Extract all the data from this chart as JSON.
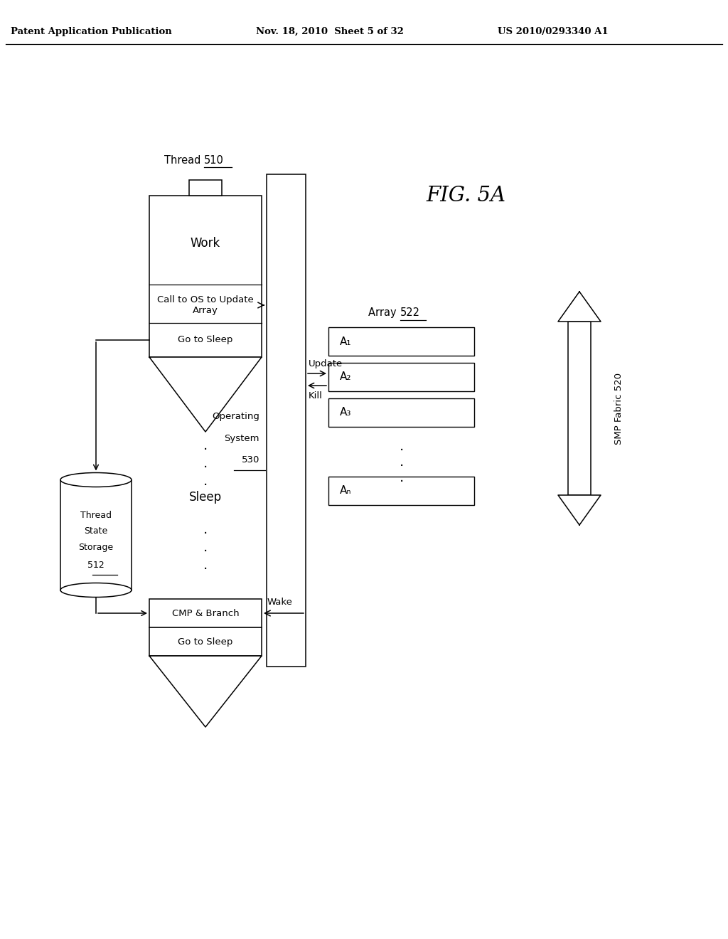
{
  "bg": "#ffffff",
  "hdr_l": "Patent Application Publication",
  "hdr_m": "Nov. 18, 2010  Sheet 5 of 32",
  "hdr_r": "US 2010/0293340 A1",
  "fig_label": "FIG. 5A",
  "work": "Work",
  "call_os": "Call to OS to Update\nArray",
  "go_sleep": "Go to Sleep",
  "sleep": "Sleep",
  "cmp": "CMP & Branch",
  "wake": "Wake",
  "tss_line1": "Thread",
  "tss_line2": "State",
  "tss_line3": "Storage",
  "tss_line4": "512",
  "os_line1": "Operating",
  "os_line2": "System",
  "os_line3": "530",
  "arr_pre": "Array ",
  "arr_num": "522",
  "update": "Update",
  "kill": "Kill",
  "smp_text": "SMP Fabric 520",
  "a1": "A₁",
  "a2": "A₂",
  "a3": "A₃",
  "an": "Aₙ",
  "thread_pre": "Thread ",
  "thread_num": "510"
}
